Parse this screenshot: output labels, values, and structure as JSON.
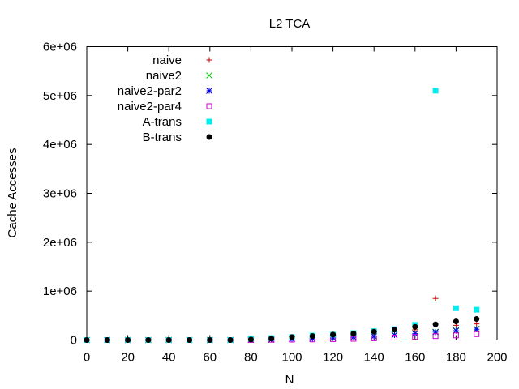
{
  "chart_data": {
    "type": "scatter",
    "title": "L2 TCA",
    "xlabel": "N",
    "ylabel": "Cache Accesses",
    "xlim": [
      0,
      200
    ],
    "ylim": [
      0,
      6000000
    ],
    "x_ticks": [
      0,
      20,
      40,
      60,
      80,
      100,
      120,
      140,
      160,
      180,
      200
    ],
    "y_ticks": [
      0,
      1000000,
      2000000,
      3000000,
      4000000,
      5000000,
      6000000
    ],
    "x_tick_labels": [
      "0",
      "20",
      "40",
      "60",
      "80",
      "100",
      "120",
      "140",
      "160",
      "180",
      "200"
    ],
    "y_tick_labels": [
      "0",
      "1e+06",
      "2e+06",
      "3e+06",
      "4e+06",
      "5e+06",
      "6e+06"
    ],
    "grid": false,
    "legend_position": "top-left",
    "series": [
      {
        "name": "naive",
        "marker": "plus",
        "color": "#cc0000",
        "x": [
          0,
          10,
          20,
          30,
          40,
          50,
          60,
          70,
          80,
          90,
          100,
          110,
          120,
          130,
          140,
          150,
          160,
          170,
          180,
          190
        ],
        "y": [
          0,
          0,
          0,
          0,
          0,
          0,
          0,
          0,
          8000,
          15000,
          30000,
          45000,
          70000,
          95000,
          130000,
          170000,
          210000,
          850000,
          300000,
          330000
        ]
      },
      {
        "name": "naive2",
        "marker": "cross",
        "color": "#00cc00",
        "x": [
          0,
          10,
          20,
          30,
          40,
          50,
          60,
          70,
          80,
          90,
          100,
          110,
          120,
          130,
          140,
          150,
          160,
          170,
          180,
          190
        ],
        "y": [
          0,
          0,
          0,
          0,
          0,
          0,
          0,
          0,
          5000,
          10000,
          20000,
          30000,
          45000,
          60000,
          80000,
          110000,
          140000,
          170000,
          200000,
          230000
        ]
      },
      {
        "name": "naive2-par2",
        "marker": "star",
        "color": "#0000ee",
        "x": [
          0,
          10,
          20,
          30,
          40,
          50,
          60,
          70,
          80,
          90,
          100,
          110,
          120,
          130,
          140,
          150,
          160,
          170,
          180,
          190
        ],
        "y": [
          0,
          0,
          0,
          0,
          0,
          0,
          0,
          0,
          4000,
          8000,
          15000,
          25000,
          40000,
          55000,
          75000,
          100000,
          130000,
          160000,
          190000,
          220000
        ]
      },
      {
        "name": "naive2-par4",
        "marker": "open-square",
        "color": "#cc00cc",
        "x": [
          0,
          10,
          20,
          30,
          40,
          50,
          60,
          70,
          80,
          90,
          100,
          110,
          120,
          130,
          140,
          150,
          160,
          170,
          180,
          190
        ],
        "y": [
          0,
          0,
          0,
          0,
          0,
          0,
          0,
          0,
          2000,
          5000,
          8000,
          12000,
          18000,
          25000,
          35000,
          50000,
          65000,
          80000,
          95000,
          120000
        ]
      },
      {
        "name": "A-trans",
        "marker": "filled-square",
        "color": "#00eeee",
        "x": [
          0,
          10,
          20,
          30,
          40,
          50,
          60,
          70,
          80,
          90,
          100,
          110,
          120,
          130,
          140,
          150,
          160,
          170,
          180,
          190
        ],
        "y": [
          0,
          0,
          0,
          0,
          0,
          0,
          0,
          0,
          25000,
          40000,
          60000,
          90000,
          110000,
          140000,
          180000,
          220000,
          310000,
          5100000,
          650000,
          620000
        ]
      },
      {
        "name": "B-trans",
        "marker": "filled-circle",
        "color": "#000000",
        "x": [
          0,
          10,
          20,
          30,
          40,
          50,
          60,
          70,
          80,
          90,
          100,
          110,
          120,
          130,
          140,
          150,
          160,
          170,
          180,
          190
        ],
        "y": [
          0,
          0,
          0,
          0,
          0,
          0,
          0,
          0,
          10000,
          30000,
          60000,
          80000,
          110000,
          130000,
          170000,
          210000,
          270000,
          320000,
          380000,
          430000
        ]
      }
    ]
  }
}
